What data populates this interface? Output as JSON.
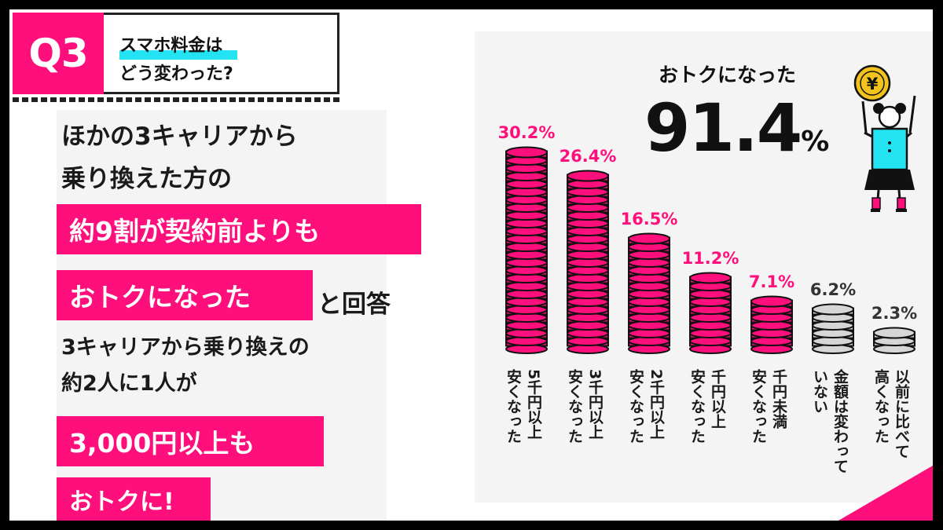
{
  "header": {
    "badge": "Q3",
    "question_line1": "スマホ料金は",
    "question_line2": "どう変わった?"
  },
  "summary": {
    "line1": "ほかの3キャリアから",
    "line2": "乗り換えた方の",
    "highlight1": "約9割が契約前よりも",
    "highlight2": "おトクになった",
    "after_highlight2": "と回答",
    "line3": "3キャリアから乗り換えの",
    "line4": "約2人に1人が",
    "highlight3": "3,000円以上も",
    "highlight4": "おトクに!"
  },
  "headline": {
    "label": "おトクになった",
    "value": "91.4",
    "unit": "%"
  },
  "colors": {
    "pink": "#ff0f7b",
    "cyan": "#23e3f2",
    "gray": "#d6d6d6"
  },
  "chart_data": {
    "type": "bar",
    "categories": [
      "5千円以上安くなった",
      "3千円以上安くなった",
      "2千円以上安くなった",
      "千円以上安くなった",
      "千円未満安くなった",
      "金額は変わっていない",
      "以前に比べて高くなった"
    ],
    "series": [
      {
        "values": [
          30.2,
          26.4,
          16.5,
          11.2,
          7.1,
          6.2,
          2.3
        ]
      }
    ],
    "value_labels": [
      "30.2%",
      "26.4%",
      "16.5%",
      "11.2%",
      "7.1%",
      "6.2%",
      "2.3%"
    ],
    "label_lines": [
      [
        "5千円以上",
        "安くなった"
      ],
      [
        "3千円以上",
        "安くなった"
      ],
      [
        "2千円以上",
        "安くなった"
      ],
      [
        "千円以上",
        "安くなった"
      ],
      [
        "千円未満",
        "安くなった"
      ],
      [
        "金額は変わって",
        "いない"
      ],
      [
        "以前に比べて",
        "高くなった"
      ]
    ],
    "bar_colors": [
      "#ff0f7b",
      "#ff0f7b",
      "#ff0f7b",
      "#ff0f7b",
      "#ff0f7b",
      "#d6d6d6",
      "#d6d6d6"
    ],
    "ylim": [
      0,
      32
    ],
    "xlabel": "",
    "ylabel": "",
    "grid": false
  }
}
